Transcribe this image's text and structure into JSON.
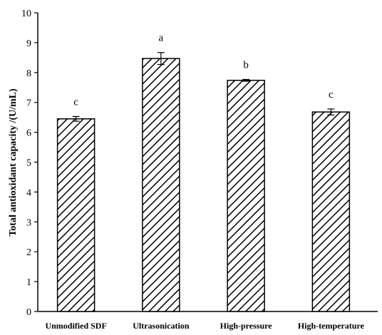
{
  "chart_data": {
    "type": "bar",
    "title": "",
    "xlabel": "",
    "ylabel": "Total antioxidant capacity /(U/mL)",
    "ylim": [
      0,
      10
    ],
    "yticks": [
      "0",
      "1",
      "2",
      "3",
      "4",
      "5",
      "6",
      "7",
      "8",
      "9",
      "10"
    ],
    "grid": false,
    "legend": "none",
    "bar_fill": "hatched",
    "colors": {
      "ink": "#000000",
      "background": "#ffffff"
    },
    "categories": [
      "Unmodified SDF",
      "Ultrasonication",
      "High-pressure",
      "High-temperature"
    ],
    "values": [
      6.45,
      8.47,
      7.74,
      6.68
    ],
    "errors": [
      0.08,
      0.2,
      0.03,
      0.1
    ],
    "significance": [
      "c",
      "a",
      "b",
      "c"
    ]
  }
}
